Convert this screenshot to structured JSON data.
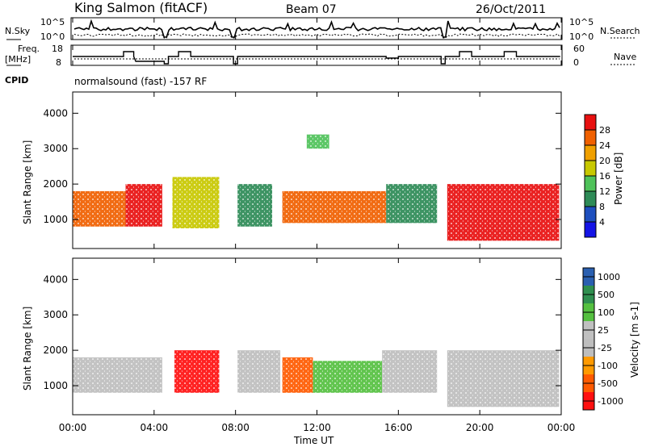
{
  "header": {
    "station": "King Salmon (fitACF)",
    "beam": "Beam 07",
    "date": "26/Oct/2011"
  },
  "params": {
    "nsky_label": "N.Sky",
    "nsky_ticks": [
      "10^5",
      "10^0"
    ],
    "nsearch_label": "N.Search",
    "nsearch_ticks": [
      "10^5",
      "10^0"
    ],
    "freq_label_1": "Freq.",
    "freq_label_2": "[MHz]",
    "freq_ticks": [
      "18",
      "8"
    ],
    "nave_label": "Nave",
    "nave_ticks": [
      "60",
      "0"
    ],
    "cpid_label": "CPID",
    "cpid_value": "normalsound (fast) -157 RF"
  },
  "colors": {
    "power_scale": [
      "#1414e6",
      "#1e4fbe",
      "#2e8b57",
      "#4fc25a",
      "#c8c800",
      "#f0a000",
      "#f06000",
      "#e81010"
    ],
    "velocity_scale": [
      "#ff1010",
      "#ff5a00",
      "#ff9a00",
      "#bebebe",
      "#c0c0c0",
      "#55c040",
      "#2f8f4f",
      "#2a5fb0"
    ],
    "ground_scatter": "#bebebe"
  },
  "chart_data": [
    {
      "type": "heatmap",
      "panel": "power",
      "x": "time (hours UT)",
      "y": "slant range (km)",
      "ylabel": "Slant Range [km]",
      "y_ticks": [
        "1000",
        "2000",
        "3000",
        "4000"
      ],
      "ylim": [
        180,
        4600
      ],
      "xlim": [
        0,
        24
      ],
      "colorbar_label": "Power [dB]",
      "colorbar_ticks": [
        "4",
        "8",
        "12",
        "16",
        "20",
        "24",
        "28"
      ],
      "colorbar_range": [
        0,
        32
      ],
      "regions": [
        {
          "t": [
            0.0,
            2.6
          ],
          "r": [
            800,
            1800
          ],
          "level": 26
        },
        {
          "t": [
            2.6,
            4.4
          ],
          "r": [
            800,
            2000
          ],
          "level": 30
        },
        {
          "t": [
            4.9,
            7.2
          ],
          "r": [
            750,
            2200
          ],
          "level": 16
        },
        {
          "t": [
            8.1,
            9.8
          ],
          "r": [
            800,
            2000
          ],
          "level": 8
        },
        {
          "t": [
            10.3,
            15.4
          ],
          "r": [
            900,
            1800
          ],
          "level": 24
        },
        {
          "t": [
            15.4,
            17.9
          ],
          "r": [
            900,
            2000
          ],
          "level": 10
        },
        {
          "t": [
            18.4,
            23.9
          ],
          "r": [
            400,
            2000
          ],
          "level": 28
        },
        {
          "t": [
            11.5,
            12.6
          ],
          "r": [
            3000,
            3400
          ],
          "level": 14
        }
      ]
    },
    {
      "type": "heatmap",
      "panel": "velocity",
      "x": "time (hours UT)",
      "y": "slant range (km)",
      "ylabel": "Slant Range [km]",
      "y_ticks": [
        "1000",
        "2000",
        "3000",
        "4000"
      ],
      "ylim": [
        180,
        4600
      ],
      "xlim": [
        0,
        24
      ],
      "colorbar_label": "Velocity [m s-1]",
      "colorbar_ticks": [
        "-1000",
        "-500",
        "-100",
        "-25",
        "25",
        "100",
        "500",
        "1000"
      ],
      "regions": [
        {
          "t": [
            0.0,
            4.4
          ],
          "r": [
            800,
            1800
          ],
          "value": 0,
          "ground_scatter": true
        },
        {
          "t": [
            5.0,
            7.2
          ],
          "r": [
            800,
            2000
          ],
          "value": -600
        },
        {
          "t": [
            8.1,
            10.2
          ],
          "r": [
            800,
            2000
          ],
          "value": 0,
          "ground_scatter": true
        },
        {
          "t": [
            10.3,
            11.8
          ],
          "r": [
            800,
            1800
          ],
          "value": -300
        },
        {
          "t": [
            11.8,
            15.2
          ],
          "r": [
            800,
            1700
          ],
          "value": 200
        },
        {
          "t": [
            15.2,
            17.9
          ],
          "r": [
            800,
            2000
          ],
          "value": 0,
          "ground_scatter": true
        },
        {
          "t": [
            18.4,
            23.9
          ],
          "r": [
            400,
            2000
          ],
          "value": 0,
          "ground_scatter": true
        }
      ]
    }
  ],
  "time_axis": {
    "label": "Time UT",
    "ticks": [
      "00:00",
      "04:00",
      "08:00",
      "12:00",
      "16:00",
      "20:00",
      "00:00"
    ]
  }
}
